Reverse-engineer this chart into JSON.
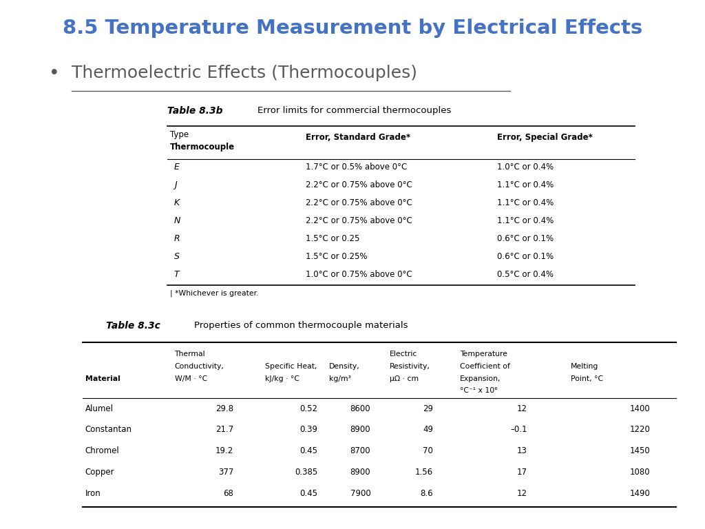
{
  "title": "8.5 Temperature Measurement by Electrical Effects",
  "title_color": "#4472C4",
  "bullet_text": "Thermoelectric Effects (Thermocouples)",
  "bullet_color": "#595959",
  "table3b_label": "Table 8.3b",
  "table3b_desc": "Error limits for commercial thermocouples",
  "table3b_rows": [
    [
      "E",
      "1.7°C or 0.5% above 0°C",
      "1.0°C or 0.4%"
    ],
    [
      "J",
      "2.2°C or 0.75% above 0°C",
      "1.1°C or 0.4%"
    ],
    [
      "K",
      "2.2°C or 0.75% above 0°C",
      "1.1°C or 0.4%"
    ],
    [
      "N",
      "2.2°C or 0.75% above 0°C",
      "1.1°C or 0.4%"
    ],
    [
      "R",
      "1.5°C or 0.25",
      "0.6°C or 0.1%"
    ],
    [
      "S",
      "1.5°C or 0.25%",
      "0.6°C or 0.1%"
    ],
    [
      "T",
      "1.0°C or 0.75% above 0°C",
      "0.5°C or 0.4%"
    ]
  ],
  "table3b_footnote": "| *Whichever is greater.",
  "table3c_label": "Table 8.3c",
  "table3c_desc": "Properties of common thermocouple materials",
  "table3c_rows": [
    [
      "Alumel",
      "29.8",
      "0.52",
      "8600",
      "29",
      "12",
      "1400"
    ],
    [
      "Constantan",
      "21.7",
      "0.39",
      "8900",
      "49",
      "–0.1",
      "1220"
    ],
    [
      "Chromel",
      "19.2",
      "0.45",
      "8700",
      "70",
      "13",
      "1450"
    ],
    [
      "Copper",
      "377",
      "0.385",
      "8900",
      "1.56",
      "17",
      "1080"
    ],
    [
      "Iron",
      "68",
      "0.45",
      "7900",
      "8.6",
      "12",
      "1490"
    ]
  ],
  "bg_color": "#ffffff"
}
